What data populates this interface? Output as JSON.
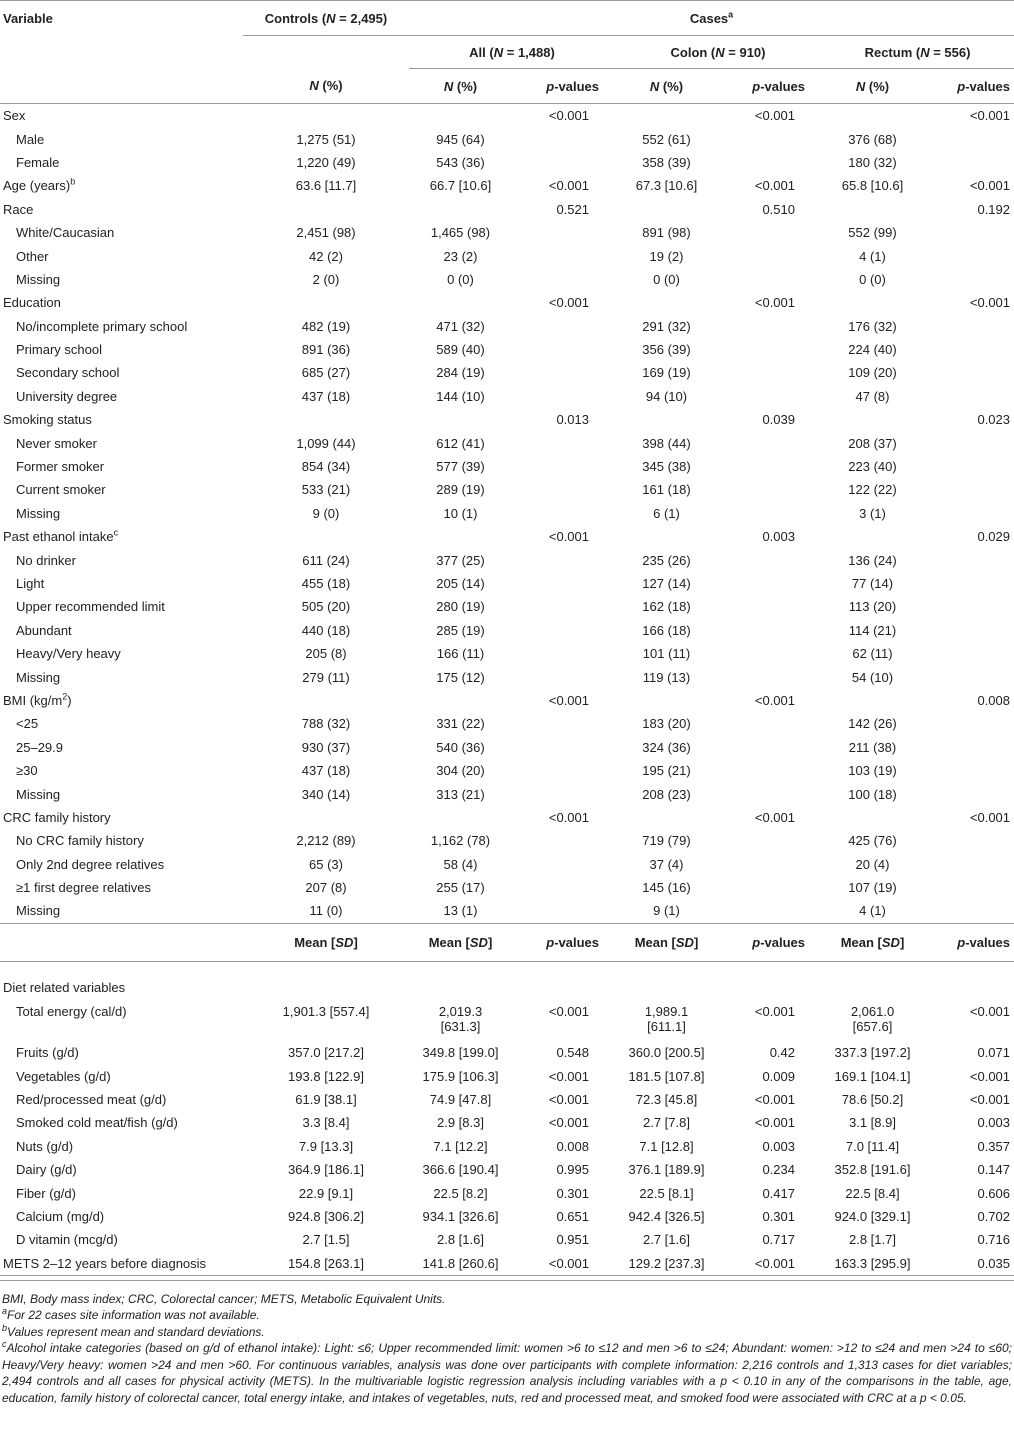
{
  "header": {
    "variable": "Variable",
    "controls_label": "Controls (",
    "controls_n": "N",
    "controls_tail": " = 2,495)",
    "cases_label": "Cases",
    "cases_sup": "a",
    "all_label": "All (",
    "all_tail": " = 1,488)",
    "colon_label": "Colon (",
    "colon_tail": " = 910)",
    "rectum_label": "Rectum (",
    "rectum_tail": " = 556)",
    "n_pct_n": "N",
    "n_pct_tail": " (%)",
    "p_italic": "p",
    "p_tail": "-values",
    "mean_label": "Mean [",
    "sd_label": "SD",
    "mean_tail": "]"
  },
  "rows": [
    {
      "v": "Sex",
      "ind": false,
      "c": "",
      "a": "",
      "ap": "<0.001",
      "co": "",
      "cop": "<0.001",
      "re": "",
      "rep": "<0.001"
    },
    {
      "v": "Male",
      "ind": true,
      "c": "1,275 (51)",
      "a": "945 (64)",
      "ap": "",
      "co": "552 (61)",
      "cop": "",
      "re": "376 (68)",
      "rep": ""
    },
    {
      "v": "Female",
      "ind": true,
      "c": "1,220 (49)",
      "a": "543 (36)",
      "ap": "",
      "co": "358 (39)",
      "cop": "",
      "re": "180 (32)",
      "rep": ""
    },
    {
      "v": "Age (years)",
      "sup": "b",
      "ind": false,
      "c": "63.6 [11.7]",
      "a": "66.7 [10.6]",
      "ap": "<0.001",
      "co": "67.3 [10.6]",
      "cop": "<0.001",
      "re": "65.8 [10.6]",
      "rep": "<0.001"
    },
    {
      "v": "Race",
      "ind": false,
      "c": "",
      "a": "",
      "ap": "0.521",
      "co": "",
      "cop": "0.510",
      "re": "",
      "rep": "0.192"
    },
    {
      "v": "White/Caucasian",
      "ind": true,
      "c": "2,451 (98)",
      "a": "1,465 (98)",
      "ap": "",
      "co": "891 (98)",
      "cop": "",
      "re": "552 (99)",
      "rep": ""
    },
    {
      "v": "Other",
      "ind": true,
      "c": "42 (2)",
      "a": "23 (2)",
      "ap": "",
      "co": "19 (2)",
      "cop": "",
      "re": "4 (1)",
      "rep": ""
    },
    {
      "v": "Missing",
      "ind": true,
      "c": "2 (0)",
      "a": "0 (0)",
      "ap": "",
      "co": "0 (0)",
      "cop": "",
      "re": "0 (0)",
      "rep": ""
    },
    {
      "v": "Education",
      "ind": false,
      "c": "",
      "a": "",
      "ap": "<0.001",
      "co": "",
      "cop": "<0.001",
      "re": "",
      "rep": "<0.001"
    },
    {
      "v": "No/incomplete primary school",
      "ind": true,
      "c": "482 (19)",
      "a": "471 (32)",
      "ap": "",
      "co": "291 (32)",
      "cop": "",
      "re": "176 (32)",
      "rep": ""
    },
    {
      "v": "Primary school",
      "ind": true,
      "c": "891 (36)",
      "a": "589 (40)",
      "ap": "",
      "co": "356 (39)",
      "cop": "",
      "re": "224 (40)",
      "rep": ""
    },
    {
      "v": "Secondary school",
      "ind": true,
      "c": "685 (27)",
      "a": "284 (19)",
      "ap": "",
      "co": "169 (19)",
      "cop": "",
      "re": "109 (20)",
      "rep": ""
    },
    {
      "v": "University degree",
      "ind": true,
      "c": "437 (18)",
      "a": "144 (10)",
      "ap": "",
      "co": "94 (10)",
      "cop": "",
      "re": "47 (8)",
      "rep": ""
    },
    {
      "v": "Smoking status",
      "ind": false,
      "c": "",
      "a": "",
      "ap": "0.013",
      "co": "",
      "cop": "0.039",
      "re": "",
      "rep": "0.023"
    },
    {
      "v": "Never smoker",
      "ind": true,
      "c": "1,099 (44)",
      "a": "612 (41)",
      "ap": "",
      "co": "398 (44)",
      "cop": "",
      "re": "208 (37)",
      "rep": ""
    },
    {
      "v": "Former smoker",
      "ind": true,
      "c": "854 (34)",
      "a": "577 (39)",
      "ap": "",
      "co": "345 (38)",
      "cop": "",
      "re": "223 (40)",
      "rep": ""
    },
    {
      "v": "Current smoker",
      "ind": true,
      "c": "533 (21)",
      "a": "289 (19)",
      "ap": "",
      "co": "161 (18)",
      "cop": "",
      "re": "122 (22)",
      "rep": ""
    },
    {
      "v": "Missing",
      "ind": true,
      "c": "9 (0)",
      "a": "10 (1)",
      "ap": "",
      "co": "6 (1)",
      "cop": "",
      "re": "3 (1)",
      "rep": ""
    },
    {
      "v": "Past ethanol intake",
      "sup": "c",
      "ind": false,
      "c": "",
      "a": "",
      "ap": "<0.001",
      "co": "",
      "cop": "0.003",
      "re": "",
      "rep": "0.029"
    },
    {
      "v": "No drinker",
      "ind": true,
      "c": "611 (24)",
      "a": "377 (25)",
      "ap": "",
      "co": "235 (26)",
      "cop": "",
      "re": "136 (24)",
      "rep": ""
    },
    {
      "v": "Light",
      "ind": true,
      "c": "455 (18)",
      "a": "205 (14)",
      "ap": "",
      "co": "127 (14)",
      "cop": "",
      "re": "77 (14)",
      "rep": ""
    },
    {
      "v": "Upper recommended limit",
      "ind": true,
      "c": "505 (20)",
      "a": "280 (19)",
      "ap": "",
      "co": "162 (18)",
      "cop": "",
      "re": "113 (20)",
      "rep": ""
    },
    {
      "v": "Abundant",
      "ind": true,
      "c": "440 (18)",
      "a": "285 (19)",
      "ap": "",
      "co": "166 (18)",
      "cop": "",
      "re": "114 (21)",
      "rep": ""
    },
    {
      "v": "Heavy/Very heavy",
      "ind": true,
      "c": "205 (8)",
      "a": "166 (11)",
      "ap": "",
      "co": "101 (11)",
      "cop": "",
      "re": "62 (11)",
      "rep": ""
    },
    {
      "v": "Missing",
      "ind": true,
      "c": "279 (11)",
      "a": "175 (12)",
      "ap": "",
      "co": "119 (13)",
      "cop": "",
      "re": "54 (10)",
      "rep": ""
    },
    {
      "v": "BMI (kg/m",
      "sup": "2",
      "tail": ")",
      "ind": false,
      "c": "",
      "a": "",
      "ap": "<0.001",
      "co": "",
      "cop": "<0.001",
      "re": "",
      "rep": "0.008"
    },
    {
      "v": "<25",
      "ind": true,
      "c": "788 (32)",
      "a": "331 (22)",
      "ap": "",
      "co": "183 (20)",
      "cop": "",
      "re": "142 (26)",
      "rep": ""
    },
    {
      "v": "25–29.9",
      "ind": true,
      "c": "930 (37)",
      "a": "540 (36)",
      "ap": "",
      "co": "324 (36)",
      "cop": "",
      "re": "211 (38)",
      "rep": ""
    },
    {
      "v": "≥30",
      "ind": true,
      "c": "437 (18)",
      "a": "304 (20)",
      "ap": "",
      "co": "195 (21)",
      "cop": "",
      "re": "103 (19)",
      "rep": ""
    },
    {
      "v": "Missing",
      "ind": true,
      "c": "340 (14)",
      "a": "313 (21)",
      "ap": "",
      "co": "208 (23)",
      "cop": "",
      "re": "100 (18)",
      "rep": ""
    },
    {
      "v": "CRC family history",
      "ind": false,
      "c": "",
      "a": "",
      "ap": "<0.001",
      "co": "",
      "cop": "<0.001",
      "re": "",
      "rep": "<0.001"
    },
    {
      "v": "No CRC family history",
      "ind": true,
      "c": "2,212 (89)",
      "a": "1,162 (78)",
      "ap": "",
      "co": "719 (79)",
      "cop": "",
      "re": "425 (76)",
      "rep": ""
    },
    {
      "v": "Only 2nd degree relatives",
      "ind": true,
      "c": "65 (3)",
      "a": "58 (4)",
      "ap": "",
      "co": "37 (4)",
      "cop": "",
      "re": "20 (4)",
      "rep": ""
    },
    {
      "v": "≥1 first degree relatives",
      "ind": true,
      "c": "207 (8)",
      "a": "255 (17)",
      "ap": "",
      "co": "145 (16)",
      "cop": "",
      "re": "107 (19)",
      "rep": ""
    },
    {
      "v": "Missing",
      "ind": true,
      "c": "11 (0)",
      "a": "13 (1)",
      "ap": "",
      "co": "9 (1)",
      "cop": "",
      "re": "4 (1)",
      "rep": ""
    }
  ],
  "rows2": [
    {
      "v": "Diet related variables",
      "ind": false,
      "c": "",
      "a": "",
      "a2": "",
      "ap": "",
      "co": "",
      "co2": "",
      "cop": "",
      "re": "",
      "re2": "",
      "rep": ""
    },
    {
      "v": "Total energy (cal/d)",
      "ind": true,
      "tall": true,
      "c": "1,901.3 [557.4]",
      "a": "2,019.3",
      "a2": "[631.3]",
      "ap": "<0.001",
      "co": "1,989.1",
      "co2": "[611.1]",
      "cop": "<0.001",
      "re": "2,061.0",
      "re2": "[657.6]",
      "rep": "<0.001"
    },
    {
      "v": "Fruits (g/d)",
      "ind": true,
      "c": "357.0 [217.2]",
      "a": "349.8 [199.0]",
      "a2": "",
      "ap": "0.548",
      "co": "360.0 [200.5]",
      "co2": "",
      "cop": "0.42",
      "re": "337.3 [197.2]",
      "re2": "",
      "rep": "0.071"
    },
    {
      "v": "Vegetables (g/d)",
      "ind": true,
      "c": "193.8 [122.9]",
      "a": "175.9 [106.3]",
      "a2": "",
      "ap": "<0.001",
      "co": "181.5 [107.8]",
      "co2": "",
      "cop": "0.009",
      "re": "169.1 [104.1]",
      "re2": "",
      "rep": "<0.001"
    },
    {
      "v": "Red/processed meat (g/d)",
      "ind": true,
      "c": "61.9 [38.1]",
      "a": "74.9 [47.8]",
      "a2": "",
      "ap": "<0.001",
      "co": "72.3 [45.8]",
      "co2": "",
      "cop": "<0.001",
      "re": "78.6 [50.2]",
      "re2": "",
      "rep": "<0.001"
    },
    {
      "v": "Smoked cold meat/fish (g/d)",
      "ind": true,
      "c": "3.3 [8.4]",
      "a": "2.9 [8.3]",
      "a2": "",
      "ap": "<0.001",
      "co": "2.7 [7.8]",
      "co2": "",
      "cop": "<0.001",
      "re": "3.1 [8.9]",
      "re2": "",
      "rep": "0.003"
    },
    {
      "v": "Nuts (g/d)",
      "ind": true,
      "c": "7.9 [13.3]",
      "a": "7.1 [12.2]",
      "a2": "",
      "ap": "0.008",
      "co": "7.1 [12.8]",
      "co2": "",
      "cop": "0.003",
      "re": "7.0 [11.4]",
      "re2": "",
      "rep": "0.357"
    },
    {
      "v": "Dairy (g/d)",
      "ind": true,
      "c": "364.9 [186.1]",
      "a": "366.6 [190.4]",
      "a2": "",
      "ap": "0.995",
      "co": "376.1 [189.9]",
      "co2": "",
      "cop": "0.234",
      "re": "352.8 [191.6]",
      "re2": "",
      "rep": "0.147"
    },
    {
      "v": "Fiber (g/d)",
      "ind": true,
      "c": "22.9 [9.1]",
      "a": "22.5 [8.2]",
      "a2": "",
      "ap": "0.301",
      "co": "22.5 [8.1]",
      "co2": "",
      "cop": "0.417",
      "re": "22.5 [8.4]",
      "re2": "",
      "rep": "0.606"
    },
    {
      "v": "Calcium (mg/d)",
      "ind": true,
      "c": "924.8 [306.2]",
      "a": "934.1 [326.6]",
      "a2": "",
      "ap": "0.651",
      "co": "942.4 [326.5]",
      "co2": "",
      "cop": "0.301",
      "re": "924.0 [329.1]",
      "re2": "",
      "rep": "0.702"
    },
    {
      "v": "D vitamin (mcg/d)",
      "ind": true,
      "c": "2.7 [1.5]",
      "a": "2.8 [1.6]",
      "a2": "",
      "ap": "0.951",
      "co": "2.7 [1.6]",
      "co2": "",
      "cop": "0.717",
      "re": "2.8 [1.7]",
      "re2": "",
      "rep": "0.716"
    },
    {
      "v": "METS 2–12 years before diagnosis",
      "ind": false,
      "c": "154.8 [263.1]",
      "a": "141.8 [260.6]",
      "a2": "",
      "ap": "<0.001",
      "co": "129.2 [237.3]",
      "co2": "",
      "cop": "<0.001",
      "re": "163.3 [295.9]",
      "re2": "",
      "rep": "0.035"
    }
  ],
  "footnotes": {
    "abbrev": "BMI, Body mass index; CRC, Colorectal cancer; METS, Metabolic Equivalent Units.",
    "a_sup": "a",
    "a_text": "For 22 cases site information was not available.",
    "b_sup": "b",
    "b_text": "Values represent mean and standard deviations.",
    "c_sup": "c",
    "c_text": "Alcohol intake categories (based on g/d of ethanol intake): Light: ≤6; Upper recommended limit: women >6 to ≤12 and men >6 to ≤24; Abundant: women: >12 to ≤24 and men >24 to ≤60; Heavy/Very heavy: women >24 and men >60. For continuous variables, analysis was done over participants with complete information: 2,216 controls and 1,313 cases for diet variables; 2,494 controls and all cases for physical activity (METS). In the multivariable logistic regression analysis including variables with a p < 0.10 in any of the comparisons in the table, age, education, family history of colorectal cancer, total energy intake, and intakes of vegetables, nuts, red and processed meat, and smoked food were associated with CRC at a p < 0.05."
  }
}
